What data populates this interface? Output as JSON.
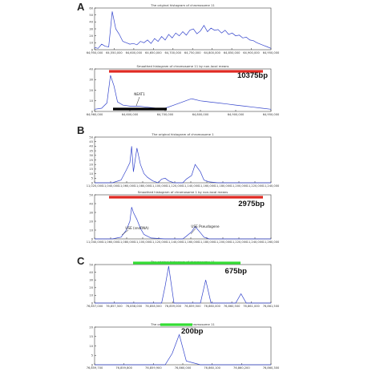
{
  "colors": {
    "line": "#3344cc",
    "red_bar": "#e02a23",
    "green_bar": "#33dd33",
    "black_bar": "#000000",
    "axis": "#444444"
  },
  "panels": [
    {
      "letter": "A"
    },
    {
      "letter": "B"
    },
    {
      "letter": "C"
    }
  ],
  "chart_data": [
    {
      "type": "line",
      "panel": "A",
      "title": "The original histogram of chromosome 11",
      "x_ticks": [
        "64,950,000",
        "64,550,000",
        "64,600,000",
        "64,650,000",
        "64,700,000",
        "64,750,000",
        "64,800,000",
        "64,850,000",
        "64,900,000",
        "64,950,000"
      ],
      "y_ticks": [
        "0",
        "10",
        "20",
        "30",
        "40",
        "50",
        "60"
      ],
      "ylim": [
        0,
        60
      ],
      "x": [
        0.0,
        0.02,
        0.04,
        0.06,
        0.08,
        0.1,
        0.12,
        0.14,
        0.16,
        0.18,
        0.2,
        0.22,
        0.24,
        0.26,
        0.28,
        0.3,
        0.32,
        0.34,
        0.36,
        0.38,
        0.4,
        0.42,
        0.44,
        0.46,
        0.48,
        0.5,
        0.52,
        0.54,
        0.56,
        0.58,
        0.6,
        0.62,
        0.64,
        0.66,
        0.68,
        0.7,
        0.72,
        0.74,
        0.76,
        0.78,
        0.8,
        0.82,
        0.84,
        0.86,
        0.88,
        0.9,
        0.92,
        0.94,
        0.96,
        0.98,
        1.0
      ],
      "y": [
        3,
        2,
        8,
        5,
        4,
        55,
        30,
        22,
        12,
        10,
        8,
        9,
        7,
        12,
        10,
        14,
        9,
        16,
        12,
        19,
        14,
        22,
        17,
        24,
        20,
        26,
        21,
        28,
        30,
        23,
        27,
        35,
        26,
        31,
        28,
        29,
        24,
        28,
        22,
        24,
        20,
        21,
        17,
        18,
        14,
        13,
        10,
        8,
        6,
        4,
        2
      ]
    },
    {
      "type": "area",
      "panel": "A",
      "title": "Smoothed histogram of chromosome 11 by non-local means",
      "x_ticks": [
        "64,960,000",
        "64,600,000",
        "64,700,000",
        "64,800,000",
        "64,900,000",
        "64,950,000"
      ],
      "y_ticks": [
        "0",
        "10",
        "20",
        "30",
        "40"
      ],
      "ylim": [
        0,
        40
      ],
      "x": [
        0.0,
        0.04,
        0.07,
        0.09,
        0.11,
        0.13,
        0.16,
        0.2,
        0.25,
        0.3,
        0.35,
        0.4,
        0.45,
        0.5,
        0.55,
        0.6,
        0.65,
        0.7,
        0.75,
        0.8,
        0.85,
        0.9,
        0.95,
        1.0
      ],
      "y": [
        2,
        3,
        8,
        34,
        24,
        9,
        6,
        5,
        5,
        4,
        3,
        3,
        6,
        9,
        12,
        10,
        9,
        8,
        7,
        6,
        5,
        4,
        3,
        2
      ],
      "annotations": [
        "10375bp",
        "NEAT1"
      ]
    },
    {
      "type": "line",
      "panel": "B",
      "title": "The original histogram of chromosome 1",
      "x_ticks": [
        "11,020,000",
        "11,040,000",
        "11,060,000",
        "11,080,000",
        "11,100,000",
        "11,120,000",
        "11,140,000",
        "11,160,000",
        "11,180,000",
        "11,200,000",
        "11,220,000",
        "11,240,000"
      ],
      "y_ticks": [
        "0",
        "5",
        "10",
        "15",
        "20",
        "25",
        "30",
        "35",
        "40",
        "45",
        "50"
      ],
      "ylim": [
        0,
        50
      ],
      "x": [
        0.0,
        0.1,
        0.15,
        0.18,
        0.2,
        0.21,
        0.22,
        0.24,
        0.26,
        0.28,
        0.3,
        0.33,
        0.36,
        0.38,
        0.4,
        0.42,
        0.45,
        0.5,
        0.52,
        0.55,
        0.57,
        0.6,
        0.62,
        0.65,
        0.7,
        0.75,
        0.8,
        0.9,
        1.0
      ],
      "y": [
        0,
        0,
        3,
        14,
        22,
        40,
        12,
        38,
        20,
        10,
        6,
        2,
        0,
        4,
        5,
        2,
        0,
        0,
        4,
        8,
        20,
        12,
        3,
        1,
        0,
        0,
        0,
        0,
        0
      ],
      "annotations": [
        "USE (snoRNA)",
        "USE Pseudogene"
      ]
    },
    {
      "type": "area",
      "panel": "B",
      "title": "Smoothed histogram of chromosome 1 by non-local means",
      "x_ticks": [
        "11,040,000",
        "11,060,000",
        "11,080,000",
        "11,100,000",
        "11,120,000",
        "11,140,000",
        "11,160,000",
        "11,180,000",
        "11,200,000",
        "11,220,000",
        "11,240,000",
        "11,260,000"
      ],
      "y_ticks": [
        "0",
        "10",
        "20",
        "30",
        "40",
        "50"
      ],
      "ylim": [
        0,
        50
      ],
      "x": [
        0.0,
        0.1,
        0.15,
        0.18,
        0.2,
        0.21,
        0.22,
        0.24,
        0.26,
        0.28,
        0.32,
        0.4,
        0.5,
        0.52,
        0.55,
        0.57,
        0.6,
        0.62,
        0.65,
        0.7,
        0.8,
        1.0
      ],
      "y": [
        0,
        0,
        2,
        10,
        20,
        36,
        30,
        22,
        12,
        5,
        1,
        0,
        0,
        3,
        8,
        14,
        7,
        2,
        0,
        0,
        0,
        0
      ],
      "annotations": [
        "2975bp",
        "USE (snoRNA)",
        "USE Pseudogene"
      ]
    },
    {
      "type": "line",
      "panel": "C",
      "title": "The original histogram of chromosome 11",
      "x_ticks": [
        "76,857,000",
        "76,857,500",
        "76,858,000",
        "76,858,500",
        "76,859,000",
        "76,859,500",
        "76,860,000",
        "76,860,500",
        "76,861,000",
        "76,861,500"
      ],
      "y_ticks": [
        "0",
        "10",
        "20",
        "30",
        "40",
        "50"
      ],
      "ylim": [
        0,
        50
      ],
      "x": [
        0.0,
        0.3,
        0.38,
        0.4,
        0.42,
        0.45,
        0.55,
        0.6,
        0.63,
        0.66,
        0.72,
        0.8,
        0.83,
        0.86,
        0.9,
        1.0
      ],
      "y": [
        0,
        0,
        0,
        22,
        48,
        0,
        0,
        0,
        30,
        0,
        0,
        0,
        12,
        0,
        0,
        0
      ],
      "annotations": [
        "675bp"
      ]
    },
    {
      "type": "line",
      "panel": "C",
      "title": "The original histogram of chromosome 11",
      "x_ticks": [
        "76,859,700",
        "76,859,800",
        "76,859,900",
        "76,860,000",
        "76,860,100",
        "76,860,200",
        "76,860,300"
      ],
      "y_ticks": [
        "0",
        "5",
        "10",
        "15",
        "20"
      ],
      "ylim": [
        0,
        20
      ],
      "x": [
        0.0,
        0.3,
        0.4,
        0.44,
        0.48,
        0.52,
        0.6,
        1.0
      ],
      "y": [
        0,
        0,
        0,
        6,
        16,
        2,
        0,
        0
      ],
      "annotations": [
        "200bp"
      ]
    }
  ]
}
